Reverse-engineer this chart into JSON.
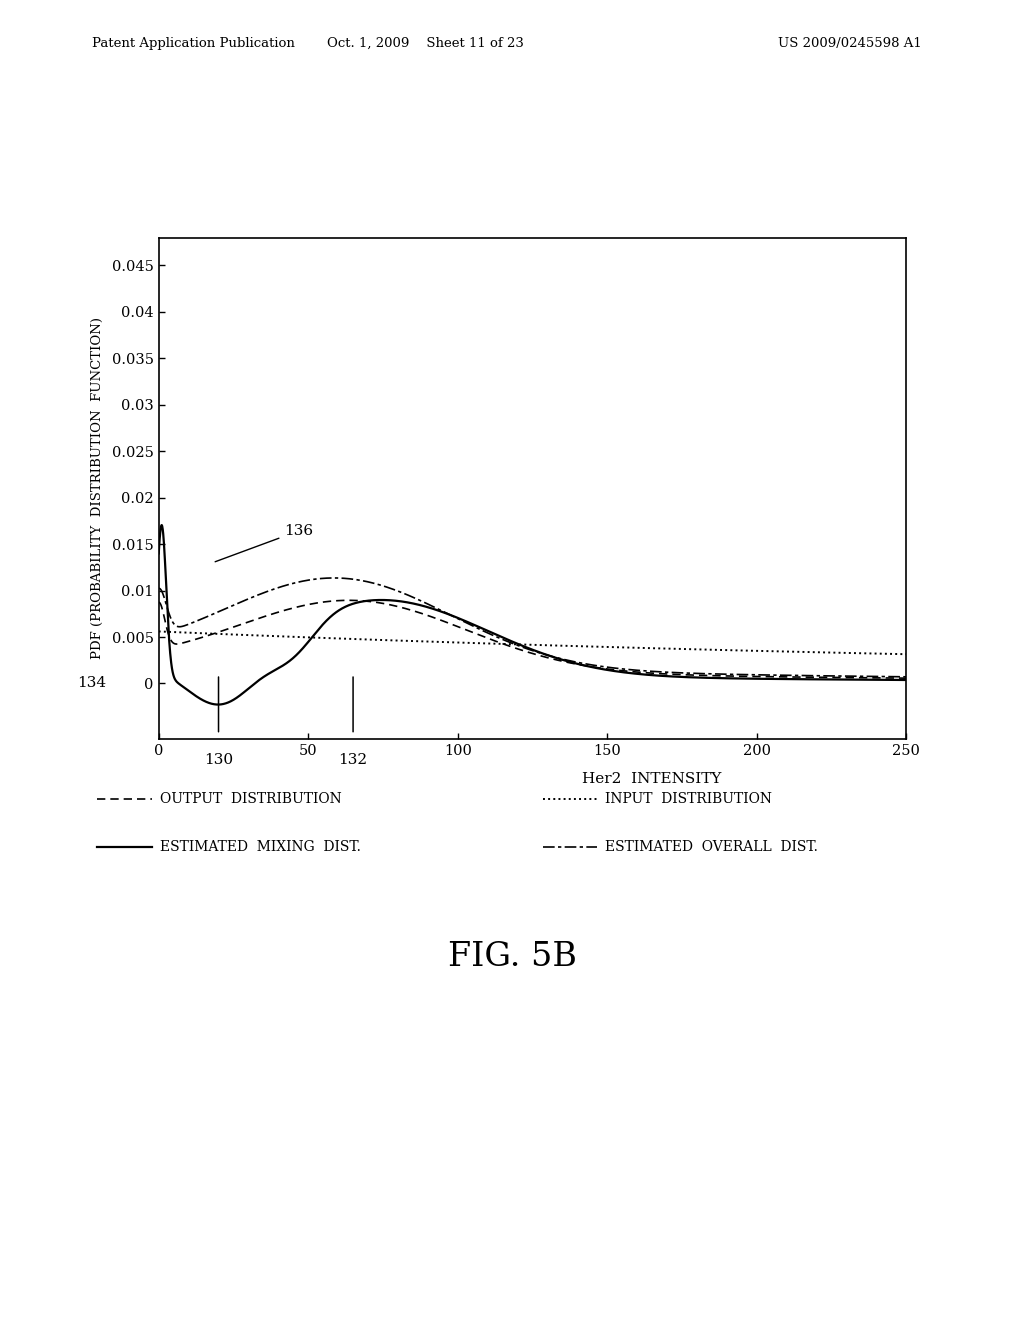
{
  "title": "",
  "xlabel": "Her2  INTENSITY",
  "ylabel": "PDF (PROBABILITY  DISTRIBUTION  FUNCTION)",
  "xlim": [
    0,
    250
  ],
  "ylim": [
    -0.006,
    0.048
  ],
  "yticks": [
    0,
    0.005,
    0.01,
    0.015,
    0.02,
    0.025,
    0.03,
    0.035,
    0.04,
    0.045
  ],
  "xticks": [
    0,
    50,
    100,
    150,
    200,
    250
  ],
  "fig_title": "FIG. 5B",
  "header_left": "Patent Application Publication",
  "header_center": "Oct. 1, 2009    Sheet 11 of 23",
  "header_right": "US 2009/0245598 A1",
  "annotation_134": "134",
  "annotation_136": "136",
  "annotation_130": "130",
  "annotation_132": "132",
  "background_color": "#ffffff",
  "line_color": "#000000"
}
